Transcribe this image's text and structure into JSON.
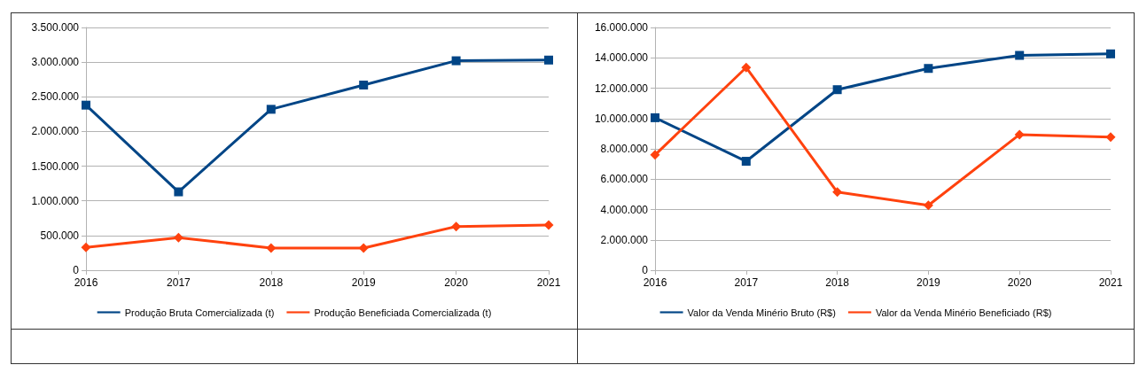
{
  "chart_data": [
    {
      "type": "line",
      "categories": [
        "2016",
        "2017",
        "2018",
        "2019",
        "2020",
        "2021"
      ],
      "series": [
        {
          "name": "Produção Bruta Comercializada (t)",
          "color": "#004586",
          "marker": "square",
          "values": [
            2380000,
            1130000,
            2320000,
            2670000,
            3020000,
            3030000
          ]
        },
        {
          "name": "Produção Beneficiada Comercializada (t)",
          "color": "#ff420e",
          "marker": "diamond",
          "values": [
            330000,
            470000,
            320000,
            320000,
            630000,
            650000
          ]
        }
      ],
      "ylim": [
        0,
        3500000
      ],
      "yticks": [
        {
          "value": 0,
          "label": "0"
        },
        {
          "value": 500000,
          "label": "500.000"
        },
        {
          "value": 1000000,
          "label": "1.000.000"
        },
        {
          "value": 1500000,
          "label": "1.500.000"
        },
        {
          "value": 2000000,
          "label": "2.000.000"
        },
        {
          "value": 2500000,
          "label": "2.500.000"
        },
        {
          "value": 3000000,
          "label": "3.000.000"
        },
        {
          "value": 3500000,
          "label": "3.500.000"
        }
      ],
      "grid": "y",
      "legend": "bottom",
      "line_style": "solid"
    },
    {
      "type": "line",
      "categories": [
        "2016",
        "2017",
        "2018",
        "2019",
        "2020",
        "2021"
      ],
      "series": [
        {
          "name": "Valor da Venda Minério Bruto (R$)",
          "color": "#004586",
          "marker": "square",
          "values": [
            10050000,
            7180000,
            11900000,
            13300000,
            14160000,
            14260000
          ]
        },
        {
          "name": "Valor da Venda Minério Beneficiado (R$)",
          "color": "#ff420e",
          "marker": "diamond",
          "values": [
            7600000,
            13360000,
            5150000,
            4280000,
            8940000,
            8780000
          ]
        }
      ],
      "ylim": [
        0,
        16000000
      ],
      "yticks": [
        {
          "value": 0,
          "label": "0"
        },
        {
          "value": 2000000,
          "label": "2.000.000"
        },
        {
          "value": 4000000,
          "label": "4.000.000"
        },
        {
          "value": 6000000,
          "label": "6.000.000"
        },
        {
          "value": 8000000,
          "label": "8.000.000"
        },
        {
          "value": 10000000,
          "label": "10.000.000"
        },
        {
          "value": 12000000,
          "label": "12.000.000"
        },
        {
          "value": 14000000,
          "label": "14.000.000"
        },
        {
          "value": 16000000,
          "label": "16.000.000"
        }
      ],
      "grid": "y",
      "legend": "bottom",
      "line_style": "solid"
    }
  ]
}
